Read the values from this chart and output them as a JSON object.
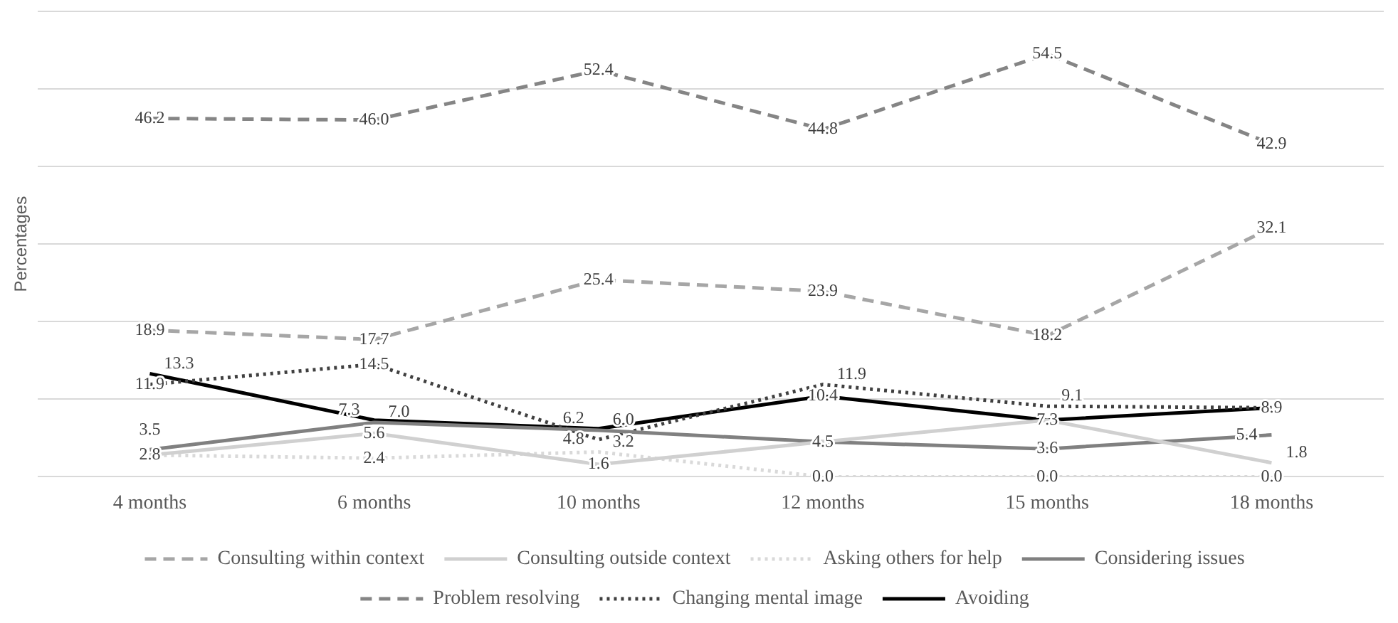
{
  "chart_data": {
    "type": "line",
    "ylabel": "Percentages",
    "categories": [
      "4 months",
      "6 months",
      "10 months",
      "12 months",
      "15 months",
      "18 months"
    ],
    "series": [
      {
        "name": "Consulting within context",
        "color": "#a6a6a6",
        "line_style": "dashed",
        "values": [
          18.9,
          17.7,
          25.4,
          23.9,
          18.2,
          32.1
        ]
      },
      {
        "name": "Consulting outside context",
        "color": "#d0d0d0",
        "line_style": "solid",
        "values": [
          2.8,
          5.6,
          1.6,
          4.5,
          7.3,
          1.8
        ],
        "value_labels": [
          "2.8",
          "5.6",
          "1.6",
          "4.5",
          "7.3",
          "1.8"
        ]
      },
      {
        "name": "Asking others for help",
        "color": "#d9d9d9",
        "line_style": "dotted",
        "values": [
          2.8,
          2.4,
          3.2,
          0.0,
          0.0,
          0.0
        ],
        "value_labels": [
          null,
          "2.4",
          "3.2",
          "0.0",
          "0.0",
          "0.0"
        ]
      },
      {
        "name": "Considering issues",
        "color": "#808080",
        "line_style": "solid",
        "values": [
          3.5,
          7.0,
          6.0,
          4.5,
          3.6,
          5.4
        ],
        "value_labels": [
          "3.5",
          "7.0",
          "6.0",
          null,
          "3.6",
          "5.4"
        ]
      },
      {
        "name": "Problem resolving",
        "color": "#858585",
        "line_style": "dashed",
        "values": [
          46.2,
          46.0,
          52.4,
          44.8,
          54.5,
          42.9
        ],
        "value_labels": [
          "46.2",
          "46.0",
          "52.4",
          "44.8",
          "54.5",
          "42.9"
        ]
      },
      {
        "name": "Changing mental image",
        "color": "#404040",
        "line_style": "dotted",
        "values": [
          11.9,
          14.5,
          4.8,
          11.9,
          9.1,
          8.9
        ]
      },
      {
        "name": "Avoiding",
        "color": "#000000",
        "line_style": "solid",
        "values": [
          13.3,
          7.3,
          6.2,
          10.4,
          7.3,
          8.9
        ],
        "value_labels": [
          "13.3",
          "7.3",
          "6.2",
          "10.4",
          null,
          null
        ]
      }
    ],
    "ylim": [
      0,
      60
    ],
    "yticks": [
      {
        "value": 0,
        "label": null
      },
      {
        "value": 10,
        "label": null
      },
      {
        "value": 20,
        "label": null
      },
      {
        "value": 30,
        "label": null
      },
      {
        "value": 40,
        "label": null
      },
      {
        "value": 50,
        "label": null
      },
      {
        "value": 60,
        "label": null
      }
    ],
    "tick_labels": "x",
    "grid": "y",
    "legend": "bottom",
    "marker": "none",
    "data_labels": true
  }
}
